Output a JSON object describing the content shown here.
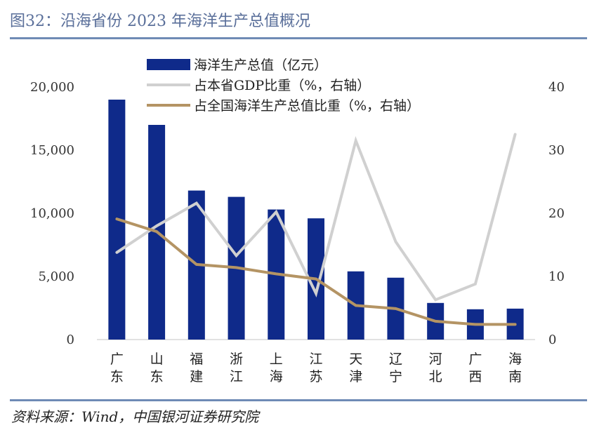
{
  "figure": {
    "title": "图32：沿海省份 2023 年海洋生产总值概况",
    "source": "资料来源：Wind，中国银河证券研究院"
  },
  "colors": {
    "bar": "#0f2a8a",
    "gdp_share_line": "#d0d0d0",
    "national_share_line": "#b49464",
    "axis": "#d9d9d9",
    "title_text": "#5a6f9a",
    "rule": "#6f8bb5"
  },
  "chart_data": {
    "type": "bar",
    "categories": [
      "广东",
      "山东",
      "福建",
      "浙江",
      "上海",
      "江苏",
      "天津",
      "辽宁",
      "河北",
      "广西",
      "海南"
    ],
    "series": [
      {
        "name": "海洋生产总值（亿元）",
        "type": "bar",
        "axis": "left",
        "values": [
          19000,
          17000,
          11800,
          11300,
          10300,
          9600,
          5400,
          4900,
          2900,
          2400,
          2450
        ]
      },
      {
        "name": "占本省GDP比重（%，右轴）",
        "type": "line",
        "axis": "right",
        "values": [
          13.8,
          18.0,
          21.6,
          13.3,
          20.2,
          7.3,
          31.5,
          15.5,
          6.3,
          8.8,
          32.5
        ]
      },
      {
        "name": "占全国海洋生产总值比重（%，右轴）",
        "type": "line",
        "axis": "right",
        "values": [
          19.1,
          17.1,
          11.9,
          11.4,
          10.4,
          9.6,
          5.4,
          4.9,
          2.9,
          2.4,
          2.4
        ]
      }
    ],
    "y_left": {
      "min": 0,
      "max": 20000,
      "ticks": [
        0,
        5000,
        10000,
        15000,
        20000
      ],
      "tick_labels": [
        "0",
        "5,000",
        "10,000",
        "15,000",
        "20,000"
      ]
    },
    "y_right": {
      "min": 0,
      "max": 40,
      "ticks": [
        0,
        10,
        20,
        30,
        40
      ],
      "tick_labels": [
        "0",
        "10",
        "20",
        "30",
        "40"
      ]
    },
    "grid": false,
    "legend": "top-left"
  }
}
